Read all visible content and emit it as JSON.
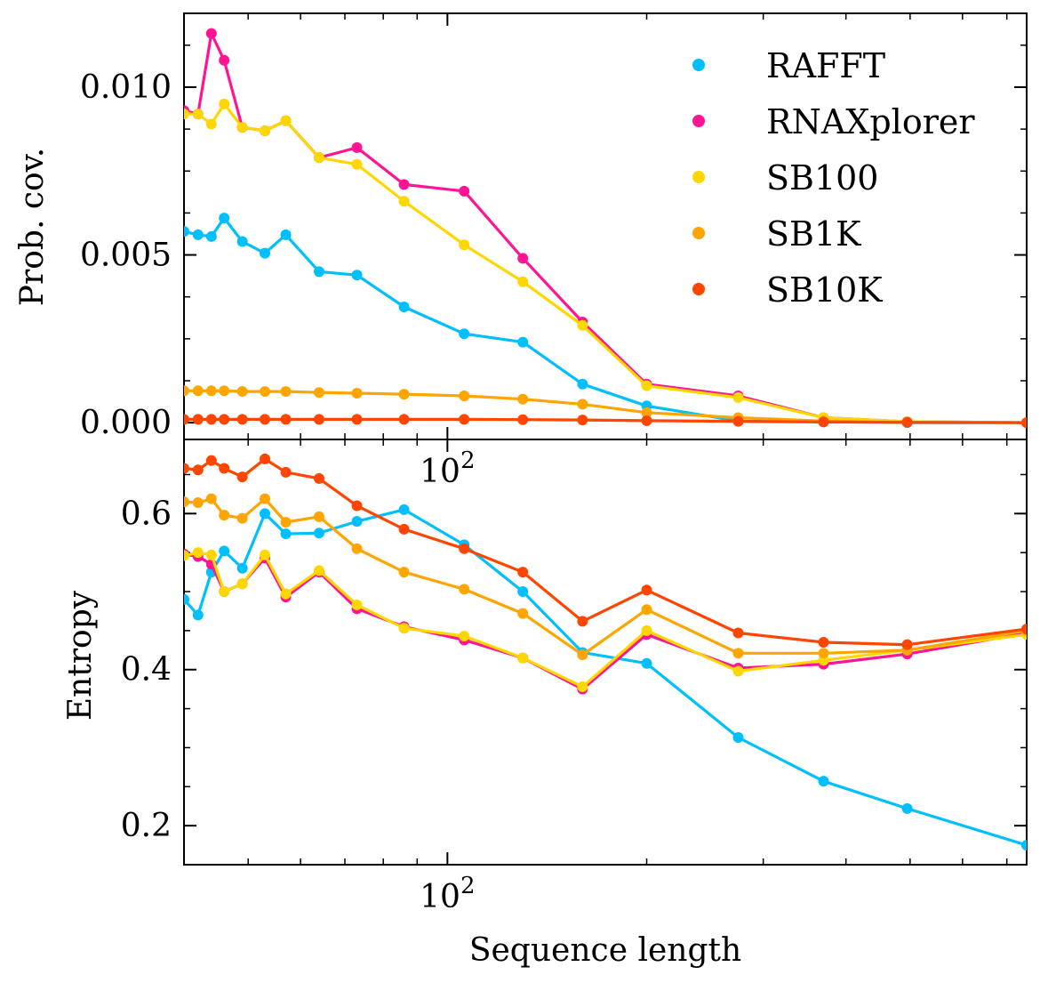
{
  "chart_data": [
    {
      "type": "line",
      "xscale": "log",
      "xlim": [
        40,
        750
      ],
      "ylim": [
        -0.0005,
        0.0122
      ],
      "ylabel": "Prob. cov.",
      "xlabel": "",
      "y_ticks": [
        0.0,
        0.005,
        0.01
      ],
      "y_tick_labels": [
        "0.000",
        "0.005",
        "0.010"
      ],
      "x_ticks": [
        100
      ],
      "x_tick_labels": [
        {
          "base": "10",
          "exp": "2"
        }
      ],
      "legend": {
        "placement": "top-right",
        "entries": [
          "RAFFT",
          "RNAXplorer",
          "SB100",
          "SB1K",
          "SB10K"
        ]
      },
      "series": [
        {
          "name": "RAFFT",
          "color": "#00BFFF",
          "x": [
            40,
            42,
            44,
            46,
            49,
            53,
            57,
            64,
            73,
            86,
            106,
            130,
            160,
            200,
            275,
            370,
            495,
            750
          ],
          "y": [
            0.0057,
            0.0056,
            0.00555,
            0.0061,
            0.0054,
            0.00505,
            0.0056,
            0.0045,
            0.0044,
            0.00345,
            0.00265,
            0.0024,
            0.00115,
            0.0005,
            5e-05,
            3e-05,
            0.0,
            0.0
          ]
        },
        {
          "name": "RNAXplorer",
          "color": "#FF1493",
          "x": [
            40,
            42,
            44,
            46,
            49,
            53,
            57,
            64,
            73,
            86,
            106,
            130,
            160,
            200,
            275,
            370,
            495,
            750
          ],
          "y": [
            0.0093,
            0.0092,
            0.0116,
            0.0108,
            0.0088,
            0.0087,
            0.009,
            0.0079,
            0.0082,
            0.0071,
            0.0069,
            0.0049,
            0.003,
            0.00115,
            0.0008,
            0.00015,
            3e-05,
            0.0
          ]
        },
        {
          "name": "SB100",
          "color": "#FFD700",
          "x": [
            40,
            42,
            44,
            46,
            49,
            53,
            57,
            64,
            73,
            86,
            106,
            130,
            160,
            200,
            275,
            370,
            495,
            750
          ],
          "y": [
            0.0092,
            0.0092,
            0.0089,
            0.0095,
            0.0088,
            0.0087,
            0.009,
            0.0079,
            0.0077,
            0.0066,
            0.0053,
            0.0042,
            0.0029,
            0.0011,
            0.00075,
            0.00015,
            3e-05,
            0.0
          ]
        },
        {
          "name": "SB1K",
          "color": "#FFA500",
          "x": [
            40,
            42,
            44,
            46,
            49,
            53,
            57,
            64,
            73,
            86,
            106,
            130,
            160,
            200,
            275,
            370,
            495,
            750
          ],
          "y": [
            0.00095,
            0.00095,
            0.00095,
            0.00095,
            0.00093,
            0.00093,
            0.00093,
            0.0009,
            0.00088,
            0.00085,
            0.0008,
            0.0007,
            0.00055,
            0.0003,
            0.00015,
            5e-05,
            1e-05,
            0.0
          ]
        },
        {
          "name": "SB10K",
          "color": "#FF4500",
          "x": [
            40,
            42,
            44,
            46,
            49,
            53,
            57,
            64,
            73,
            86,
            106,
            130,
            160,
            200,
            275,
            370,
            495,
            750
          ],
          "y": [
            0.0001,
            0.0001,
            0.0001,
            0.0001,
            0.0001,
            0.0001,
            0.0001,
            0.0001,
            0.0001,
            0.0001,
            0.0001,
            9e-05,
            8e-05,
            6e-05,
            4e-05,
            2e-05,
            1e-05,
            0.0
          ]
        }
      ]
    },
    {
      "type": "line",
      "xscale": "log",
      "xlim": [
        40,
        750
      ],
      "ylim": [
        0.15,
        0.695
      ],
      "ylabel": "Entropy",
      "xlabel": "Sequence length",
      "y_ticks": [
        0.2,
        0.4,
        0.6
      ],
      "y_tick_labels": [
        "0.2",
        "0.4",
        "0.6"
      ],
      "x_ticks": [
        100
      ],
      "x_tick_labels": [
        {
          "base": "10",
          "exp": "2"
        }
      ],
      "series": [
        {
          "name": "RAFFT",
          "color": "#00BFFF",
          "x": [
            40,
            42,
            44,
            46,
            49,
            53,
            57,
            64,
            73,
            86,
            106,
            130,
            160,
            200,
            275,
            370,
            495,
            750
          ],
          "y": [
            0.49,
            0.47,
            0.525,
            0.552,
            0.53,
            0.6,
            0.574,
            0.575,
            0.59,
            0.605,
            0.56,
            0.5,
            0.422,
            0.408,
            0.313,
            0.257,
            0.222,
            0.175
          ]
        },
        {
          "name": "RNAXplorer",
          "color": "#FF1493",
          "x": [
            40,
            42,
            44,
            46,
            49,
            53,
            57,
            64,
            73,
            86,
            106,
            130,
            160,
            200,
            275,
            370,
            495,
            750
          ],
          "y": [
            0.548,
            0.545,
            0.535,
            0.5,
            0.51,
            0.543,
            0.493,
            0.525,
            0.478,
            0.455,
            0.438,
            0.415,
            0.375,
            0.445,
            0.402,
            0.407,
            0.42,
            0.447
          ]
        },
        {
          "name": "SB100",
          "color": "#FFD700",
          "x": [
            40,
            42,
            44,
            46,
            49,
            53,
            57,
            64,
            73,
            86,
            106,
            130,
            160,
            200,
            275,
            370,
            495,
            750
          ],
          "y": [
            0.546,
            0.55,
            0.547,
            0.5,
            0.51,
            0.547,
            0.497,
            0.527,
            0.483,
            0.453,
            0.443,
            0.415,
            0.378,
            0.45,
            0.398,
            0.412,
            0.425,
            0.445
          ]
        },
        {
          "name": "SB1K",
          "color": "#FFA500",
          "x": [
            40,
            42,
            44,
            46,
            49,
            53,
            57,
            64,
            73,
            86,
            106,
            130,
            160,
            200,
            275,
            370,
            495,
            750
          ],
          "y": [
            0.615,
            0.614,
            0.619,
            0.598,
            0.594,
            0.619,
            0.589,
            0.596,
            0.555,
            0.525,
            0.503,
            0.472,
            0.419,
            0.477,
            0.421,
            0.421,
            0.425,
            0.45
          ]
        },
        {
          "name": "SB10K",
          "color": "#FF4500",
          "x": [
            40,
            42,
            44,
            46,
            49,
            53,
            57,
            64,
            73,
            86,
            106,
            130,
            160,
            200,
            275,
            370,
            495,
            750
          ],
          "y": [
            0.658,
            0.656,
            0.668,
            0.658,
            0.647,
            0.67,
            0.653,
            0.645,
            0.61,
            0.58,
            0.555,
            0.525,
            0.462,
            0.502,
            0.447,
            0.435,
            0.432,
            0.452
          ]
        }
      ]
    }
  ]
}
